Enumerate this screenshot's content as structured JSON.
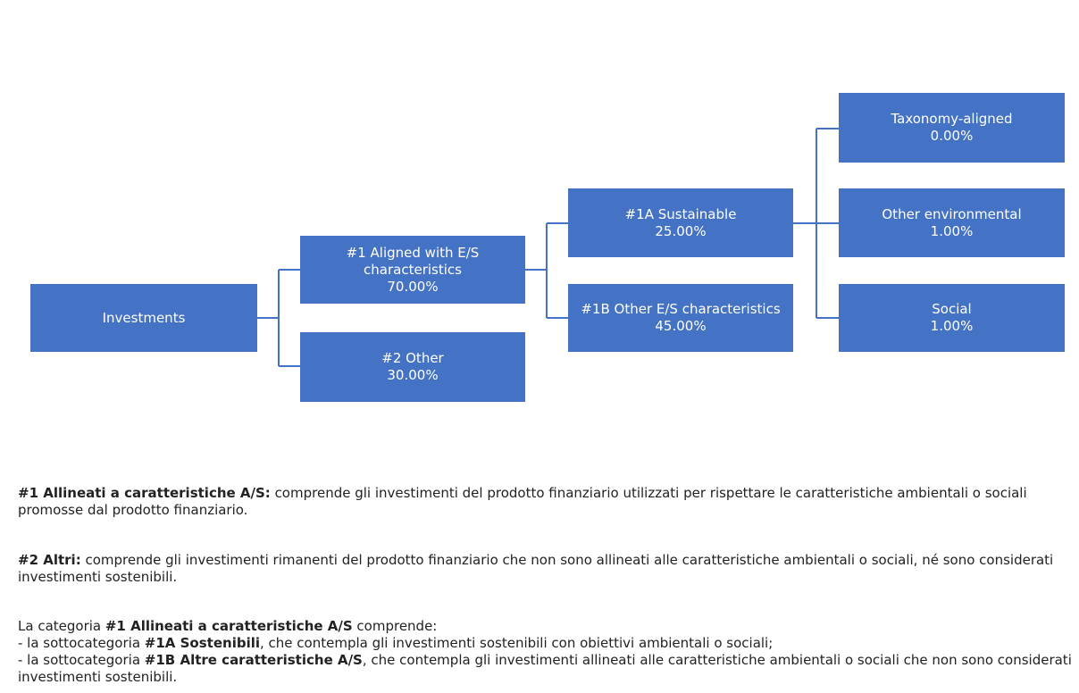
{
  "diagram": {
    "investments": {
      "label": "Investments"
    },
    "aligned": {
      "label": "#1 Aligned with E/S characteristics",
      "value": "70.00%"
    },
    "other": {
      "label": "#2 Other",
      "value": "30.00%"
    },
    "sustainable": {
      "label": "#1A Sustainable",
      "value": "25.00%"
    },
    "other_es": {
      "label": "#1B Other E/S characteristics",
      "value": "45.00%"
    },
    "taxonomy": {
      "label": "Taxonomy-aligned",
      "value": "0.00%"
    },
    "other_env": {
      "label": "Other environmental",
      "value": "1.00%"
    },
    "social": {
      "label": "Social",
      "value": "1.00%"
    },
    "accent_color": "#4472C4"
  },
  "notes": {
    "p1_bold": "#1 Allineati a caratteristiche A/S:",
    "p1_text": " comprende gli investimenti del prodotto finanziario utilizzati per rispettare le caratteristiche ambientali o sociali promosse dal prodotto finanziario.",
    "p2_bold": "#2 Altri:",
    "p2_text": " comprende gli investimenti rimanenti del prodotto finanziario che non sono allineati alle caratteristiche ambientali o sociali, né sono considerati investimenti sostenibili.",
    "p3_intro": "La categoria ",
    "p3_bold": "#1 Allineati a caratteristiche A/S",
    "p3_after": " comprende:",
    "p3_line2_pre": "- la sottocategoria ",
    "p3_line2_bold": "#1A Sostenibili",
    "p3_line2_text": ", che contempla gli investimenti sostenibili con obiettivi ambientali o sociali;",
    "p3_line3_pre": "- la sottocategoria ",
    "p3_line3_bold": "#1B Altre caratteristiche A/S",
    "p3_line3_text": ", che contempla gli investimenti allineati alle caratteristiche ambientali o sociali che non sono considerati investimenti sostenibili."
  }
}
